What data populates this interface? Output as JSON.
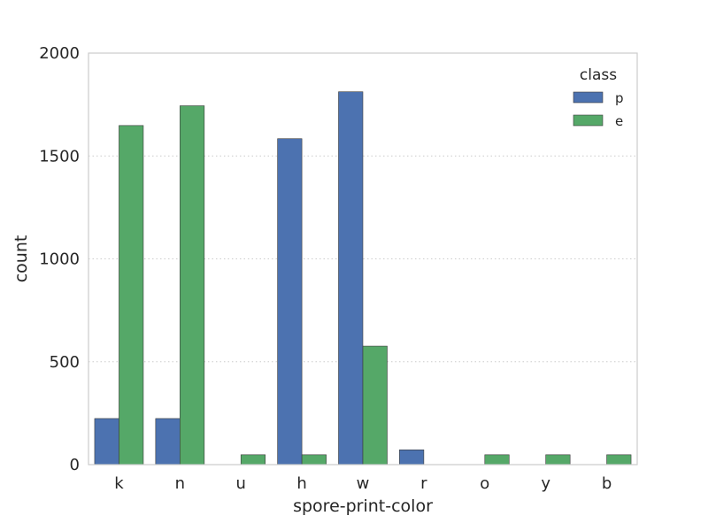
{
  "chart_data": {
    "type": "bar",
    "title": "",
    "xlabel": "spore-print-color",
    "ylabel": "count",
    "categories": [
      "k",
      "n",
      "u",
      "h",
      "w",
      "r",
      "o",
      "y",
      "b"
    ],
    "ylim": [
      0,
      2000
    ],
    "yticks": [
      0,
      500,
      1000,
      1500,
      2000
    ],
    "grid": "horizontal dotted",
    "legend": {
      "title": "class",
      "placement": "top-right"
    },
    "series": [
      {
        "name": "p",
        "color": "#4c72b0",
        "values": [
          224,
          224,
          0,
          1584,
          1812,
          72,
          0,
          0,
          0
        ]
      },
      {
        "name": "e",
        "color": "#55a868",
        "values": [
          1648,
          1744,
          48,
          48,
          576,
          0,
          48,
          48,
          48
        ]
      }
    ]
  }
}
